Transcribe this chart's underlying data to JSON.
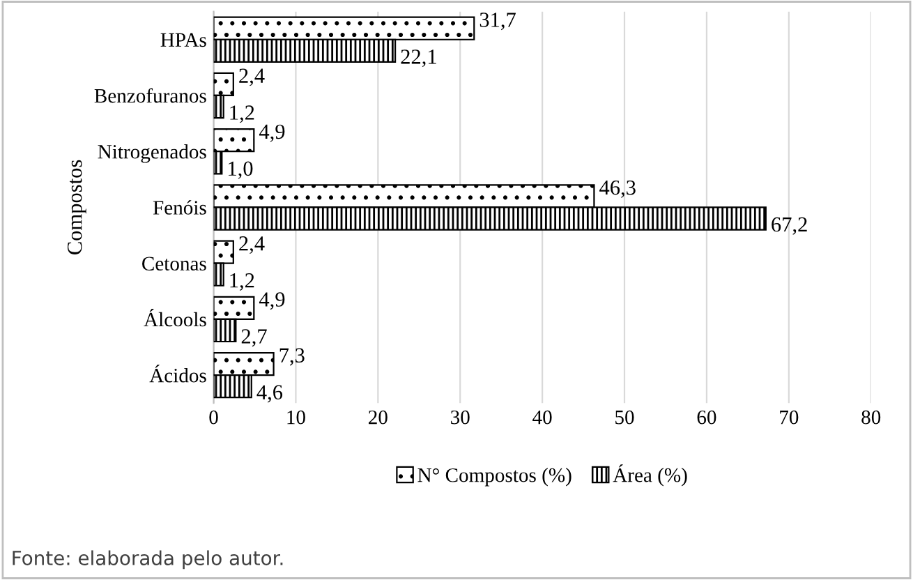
{
  "chart_data": {
    "type": "bar",
    "orientation": "horizontal",
    "ylabel": "Compostos",
    "categories": [
      "HPAs",
      "Benzofuranos",
      "Nitrogenados",
      "Fenóis",
      "Cetonas",
      "Álcools",
      "Ácidos"
    ],
    "series": [
      {
        "name": "N° Compostos (%)",
        "color": "#000000",
        "values": [
          31.7,
          2.4,
          4.9,
          46.3,
          2.4,
          4.9,
          7.3
        ],
        "value_labels": [
          "31,7",
          "2,4",
          "4,9",
          "46,3",
          "2,4",
          "4,9",
          "7,3"
        ]
      },
      {
        "name": "Área (%)",
        "color": "#000000",
        "values": [
          22.1,
          1.2,
          1.0,
          67.2,
          1.2,
          2.7,
          4.6
        ],
        "value_labels": [
          "22,1",
          "1,2",
          "1,0",
          "67,2",
          "1,2",
          "2,7",
          "4,6"
        ]
      }
    ],
    "xlim": [
      0,
      80
    ],
    "xticks": [
      0,
      10,
      20,
      30,
      40,
      50,
      60,
      70,
      80
    ],
    "grid": "x",
    "legend": "bottom",
    "annotations": [
      "Fonte: elaborada pelo autor."
    ]
  }
}
